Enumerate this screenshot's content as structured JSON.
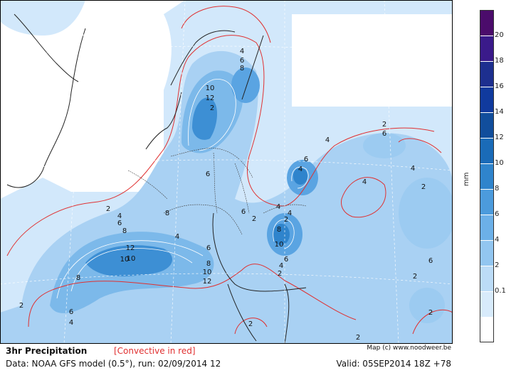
{
  "title": "3hr Precipitation",
  "convective_note": "[Convective in red]",
  "credit": "Map (c) www.noodweer.be",
  "data_source": "Data: NOAA GFS model (0.5°), run: 02/09/2014 12",
  "valid": "Valid: 05SEP2014 18Z +78",
  "legend": {
    "unit": "mm",
    "ticks": [
      "20",
      "18",
      "16",
      "14",
      "12",
      "10",
      "8",
      "6",
      "4",
      "2",
      "0.1"
    ],
    "colors": [
      "#4b0c6b",
      "#3a1a8a",
      "#1d2f8f",
      "#103a9e",
      "#114e9c",
      "#1a6bb8",
      "#2f84cc",
      "#4c9bdc",
      "#6cb0e8",
      "#92c6f0",
      "#bcdcf7",
      "#d8ebfb",
      "#ffffff"
    ]
  },
  "contour_labels": [
    "4",
    "6",
    "8",
    "10",
    "12",
    "2",
    "6",
    "8",
    "6",
    "4",
    "10",
    "8",
    "2",
    "4",
    "6",
    "8",
    "10",
    "12",
    "8",
    "10",
    "6",
    "2",
    "4",
    "6",
    "2",
    "4",
    "4",
    "2",
    "12",
    "10",
    "8",
    "6",
    "4",
    "2",
    "4",
    "6",
    "4",
    "2",
    "6",
    "4",
    "4",
    "2",
    "6",
    "2",
    "2",
    "2",
    "2"
  ],
  "colors": {
    "precip_light": "#c4dff7",
    "precip_mid": "#6cb0e8",
    "precip_heavy": "#1a6bb8",
    "convective": "#e03030",
    "coast": "#222222"
  }
}
